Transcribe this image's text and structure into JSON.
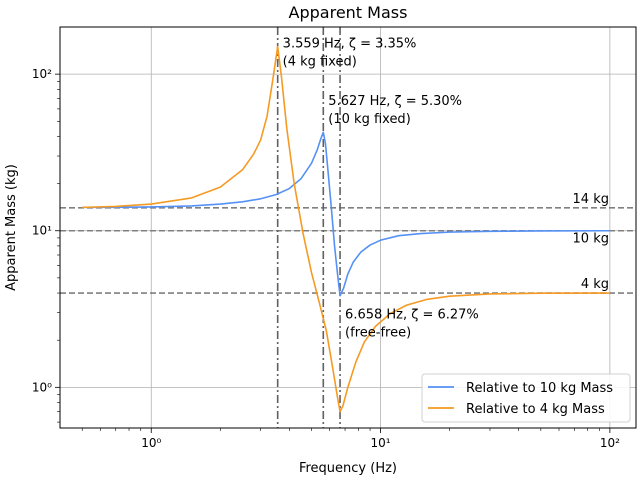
{
  "chart_data": {
    "type": "line",
    "title": "Apparent Mass",
    "xlabel": "Frequency (Hz)",
    "ylabel": "Apparent Mass (kg)",
    "xscale": "log",
    "yscale": "log",
    "xlim": [
      0.4,
      130
    ],
    "ylim": [
      0.55,
      200
    ],
    "x_ticks": [
      {
        "value": 1,
        "label": "10⁰"
      },
      {
        "value": 10,
        "label": "10¹"
      },
      {
        "value": 100,
        "label": "10²"
      }
    ],
    "y_ticks": [
      {
        "value": 1,
        "label": "10⁰"
      },
      {
        "value": 10,
        "label": "10¹"
      },
      {
        "value": 100,
        "label": "10²"
      }
    ],
    "grid": true,
    "legend_position": "lower-right",
    "series": [
      {
        "name": "Relative to 10 kg Mass",
        "color": "#5591f5",
        "points": [
          [
            0.5,
            14.1
          ],
          [
            0.7,
            14.1
          ],
          [
            1.0,
            14.2
          ],
          [
            1.5,
            14.4
          ],
          [
            2.0,
            14.8
          ],
          [
            2.5,
            15.3
          ],
          [
            3.0,
            16.0
          ],
          [
            3.5,
            17.0
          ],
          [
            4.0,
            18.6
          ],
          [
            4.5,
            21.5
          ],
          [
            5.0,
            27
          ],
          [
            5.3,
            33
          ],
          [
            5.5,
            39
          ],
          [
            5.627,
            42.5
          ],
          [
            5.75,
            36
          ],
          [
            5.9,
            24
          ],
          [
            6.1,
            14
          ],
          [
            6.3,
            8
          ],
          [
            6.5,
            5.2
          ],
          [
            6.658,
            3.85
          ],
          [
            6.9,
            4.3
          ],
          [
            7.2,
            5.3
          ],
          [
            7.6,
            6.3
          ],
          [
            8.2,
            7.3
          ],
          [
            9.0,
            8.1
          ],
          [
            10,
            8.7
          ],
          [
            12,
            9.3
          ],
          [
            15,
            9.6
          ],
          [
            20,
            9.8
          ],
          [
            30,
            9.92
          ],
          [
            50,
            9.97
          ],
          [
            100,
            10.0
          ]
        ]
      },
      {
        "name": "Relative to 4 kg Mass",
        "color": "#f59a23",
        "points": [
          [
            0.5,
            14.1
          ],
          [
            0.7,
            14.3
          ],
          [
            1.0,
            14.8
          ],
          [
            1.5,
            16.2
          ],
          [
            2.0,
            19.0
          ],
          [
            2.5,
            24.5
          ],
          [
            2.8,
            31
          ],
          [
            3.0,
            38
          ],
          [
            3.2,
            54
          ],
          [
            3.4,
            95
          ],
          [
            3.559,
            150
          ],
          [
            3.7,
            95
          ],
          [
            3.9,
            45
          ],
          [
            4.2,
            20
          ],
          [
            4.6,
            9.5
          ],
          [
            5.0,
            5.4
          ],
          [
            5.4,
            3.5
          ],
          [
            5.8,
            2.3
          ],
          [
            6.2,
            1.3
          ],
          [
            6.5,
            0.85
          ],
          [
            6.658,
            0.7
          ],
          [
            6.85,
            0.76
          ],
          [
            7.2,
            1.0
          ],
          [
            7.8,
            1.45
          ],
          [
            8.5,
            1.95
          ],
          [
            9.5,
            2.45
          ],
          [
            11,
            2.95
          ],
          [
            13,
            3.35
          ],
          [
            16,
            3.65
          ],
          [
            20,
            3.82
          ],
          [
            30,
            3.95
          ],
          [
            50,
            3.99
          ],
          [
            100,
            4.0
          ]
        ]
      }
    ],
    "reference_lines": {
      "horizontal": [
        {
          "value": 14,
          "label": "14 kg",
          "label_side": "above"
        },
        {
          "value": 10,
          "label": "10 kg",
          "label_side": "below"
        },
        {
          "value": 4,
          "label": "4 kg",
          "label_side": "above"
        }
      ],
      "vertical": [
        {
          "value": 3.559,
          "line1": "3.559 Hz, ζ = 3.35%",
          "line2": "(4 kg fixed)",
          "label_y": 140
        },
        {
          "value": 5.627,
          "line1": "5.627 Hz, ζ = 5.30%",
          "line2": "(10 kg fixed)",
          "label_y": 60
        },
        {
          "value": 6.658,
          "line1": "6.658 Hz, ζ = 6.27%",
          "line2": "(free-free)",
          "label_y": 2.6
        }
      ]
    }
  }
}
